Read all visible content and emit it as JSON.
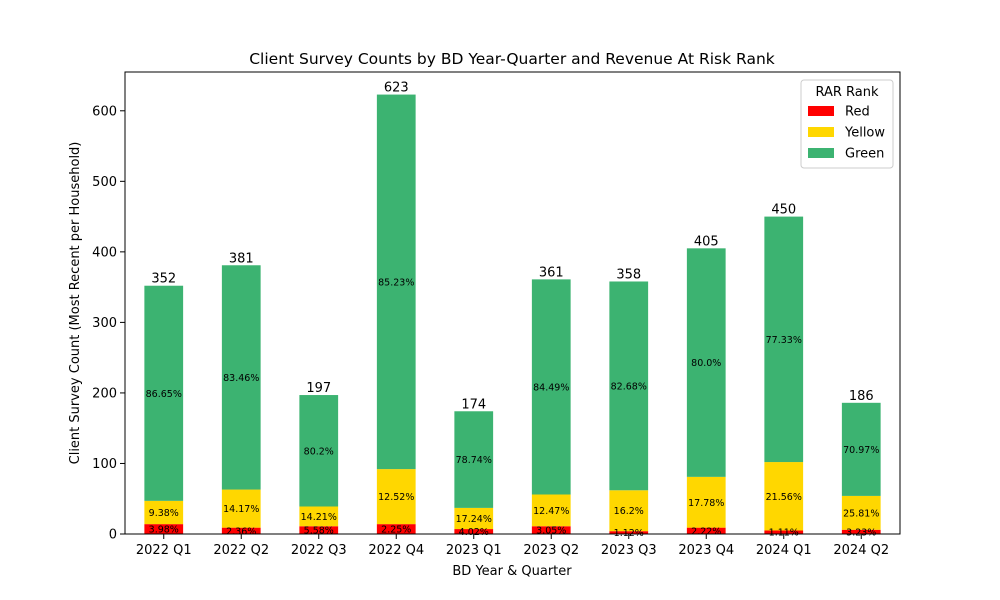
{
  "colors": {
    "Red": "#ff0000",
    "Yellow": "#ffd700",
    "Green": "#3cb371"
  },
  "chart_data": {
    "type": "bar",
    "stacked": true,
    "title": "Client Survey Counts by BD Year-Quarter and Revenue At Risk Rank",
    "xlabel": "BD Year & Quarter",
    "ylabel": "Client Survey Count (Most Recent per Household)",
    "ylim": [
      0,
      655
    ],
    "yticks": [
      0,
      100,
      200,
      300,
      400,
      500,
      600
    ],
    "legend_title": "RAR Rank",
    "legend_position": "top-right",
    "categories": [
      "2022 Q1",
      "2022 Q2",
      "2022 Q3",
      "2022 Q4",
      "2023 Q1",
      "2023 Q2",
      "2023 Q3",
      "2023 Q4",
      "2024 Q1",
      "2024 Q2"
    ],
    "totals": [
      352,
      381,
      197,
      623,
      174,
      361,
      358,
      405,
      450,
      186
    ],
    "series": [
      {
        "name": "Red",
        "values": [
          14,
          9,
          11,
          14,
          7,
          11,
          4,
          9,
          5,
          6
        ],
        "labels": [
          "3.98%",
          "2.36%",
          "5.58%",
          "2.25%",
          "4.02%",
          "3.05%",
          "1.12%",
          "2.22%",
          "1.11%",
          "3.23%"
        ]
      },
      {
        "name": "Yellow",
        "values": [
          33,
          54,
          28,
          78,
          30,
          45,
          58,
          72,
          97,
          48
        ],
        "labels": [
          "9.38%",
          "14.17%",
          "14.21%",
          "12.52%",
          "17.24%",
          "12.47%",
          "16.2%",
          "17.78%",
          "21.56%",
          "25.81%"
        ]
      },
      {
        "name": "Green",
        "values": [
          305,
          318,
          158,
          531,
          137,
          305,
          296,
          324,
          348,
          132
        ],
        "labels": [
          "86.65%",
          "83.46%",
          "80.2%",
          "85.23%",
          "78.74%",
          "84.49%",
          "82.68%",
          "80.0%",
          "77.33%",
          "70.97%"
        ]
      }
    ]
  }
}
